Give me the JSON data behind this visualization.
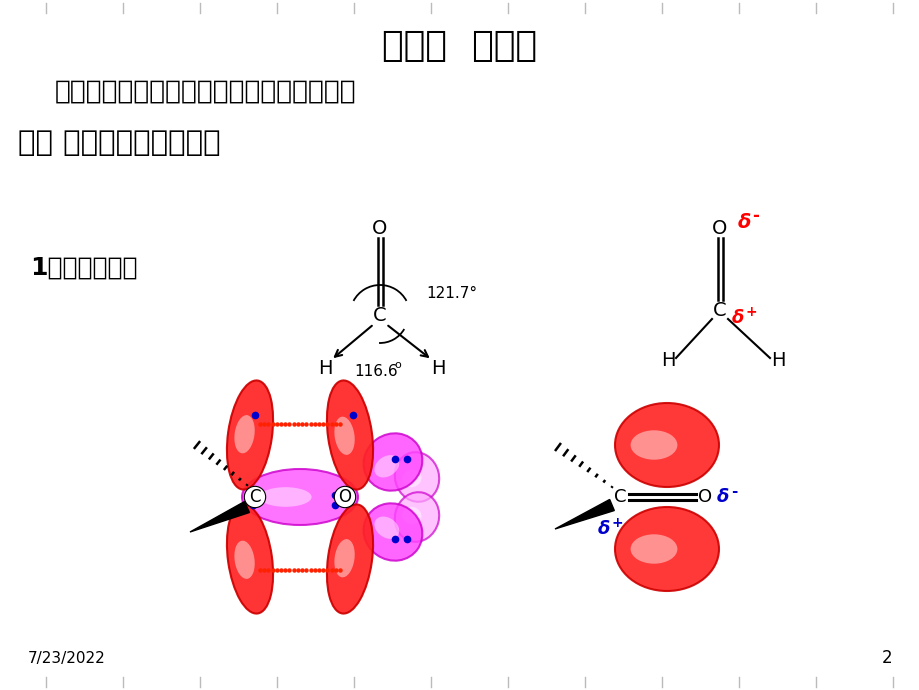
{
  "title": "第一节  醛、酮",
  "subtitle": "醛和酮是分子中含有羰基官能团的有机物。",
  "section": "一、 醛、酮的结构和分类",
  "subsection": "1、醛酮的结构",
  "angle1": "121.7",
  "angle2": "116.6",
  "bg_color": "#ffffff",
  "title_fontsize": 26,
  "subtitle_fontsize": 19,
  "section_fontsize": 21,
  "subsection_fontsize": 18,
  "date_text": "7/23/2022",
  "page_num": "2",
  "red_color": "#ff0000",
  "blue_color": "#0000cc",
  "black_color": "#000000",
  "orbital_red_face": "#ff2222",
  "orbital_red_light": "#ff8888",
  "orbital_pink_face": "#ff44ff",
  "orbital_pink_light": "#ffaaff",
  "orbital_red_edge": "#cc0000",
  "orbital_pink_edge": "#cc00cc"
}
